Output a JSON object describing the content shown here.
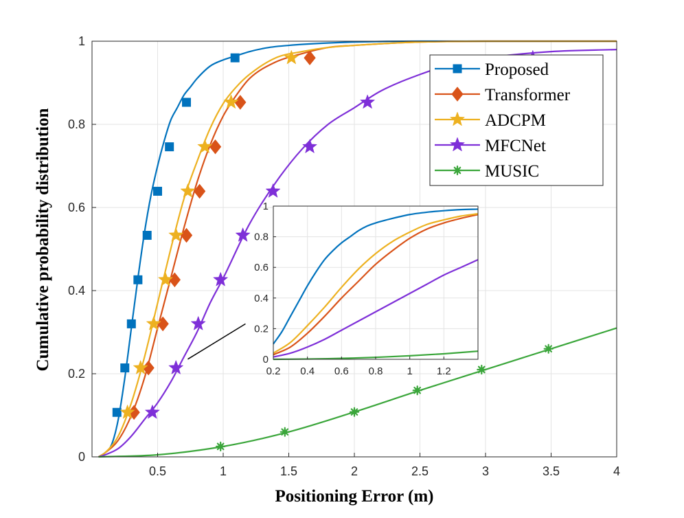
{
  "chart_data": [
    {
      "type": "line",
      "title": "",
      "xlabel": "Positioning  Error  (m)",
      "ylabel": "Cumulative  probability  distribution",
      "xlim": [
        0,
        4
      ],
      "ylim": [
        0,
        1
      ],
      "x_ticks": [
        0.5,
        1,
        1.5,
        2,
        2.5,
        3,
        3.5,
        4
      ],
      "x_tick_labels": [
        "0.5",
        "1",
        "1.5",
        "2",
        "2.5",
        "3",
        "3.5",
        "4"
      ],
      "y_ticks": [
        0,
        0.2,
        0.4,
        0.6,
        0.8,
        1
      ],
      "y_tick_labels": [
        "0",
        "0.2",
        "0.4",
        "0.6",
        "0.8",
        "1"
      ],
      "grid": true,
      "legend_position": "top-right",
      "series": [
        {
          "name": "Proposed",
          "color": "#0072BD",
          "marker": "square",
          "x": [
            0.05,
            0.1,
            0.15,
            0.2,
            0.25,
            0.3,
            0.35,
            0.4,
            0.45,
            0.5,
            0.55,
            0.6,
            0.65,
            0.7,
            0.75,
            0.8,
            0.9,
            1.0,
            1.1,
            1.2,
            1.35,
            1.5,
            1.75,
            2.0,
            2.5,
            3.0,
            3.5,
            4.0
          ],
          "y": [
            0.0,
            0.01,
            0.03,
            0.09,
            0.19,
            0.31,
            0.43,
            0.54,
            0.63,
            0.7,
            0.76,
            0.81,
            0.84,
            0.87,
            0.89,
            0.91,
            0.94,
            0.955,
            0.965,
            0.975,
            0.985,
            0.99,
            0.995,
            0.998,
            1.0,
            1.0,
            1.0,
            1.0
          ],
          "marker_x": [
            0.19,
            0.25,
            0.3,
            0.35,
            0.42,
            0.5,
            0.59,
            0.72,
            1.09
          ],
          "marker_y": [
            0.107,
            0.214,
            0.32,
            0.426,
            0.533,
            0.639,
            0.746,
            0.853,
            0.96
          ]
        },
        {
          "name": "Transformer",
          "color": "#D95319",
          "marker": "diamond",
          "x": [
            0.05,
            0.1,
            0.2,
            0.3,
            0.4,
            0.5,
            0.6,
            0.7,
            0.8,
            0.9,
            1.0,
            1.1,
            1.2,
            1.4,
            1.6,
            1.8,
            2.0,
            2.5,
            3.0,
            3.5,
            4.0
          ],
          "y": [
            0.0,
            0.01,
            0.04,
            0.1,
            0.19,
            0.31,
            0.43,
            0.55,
            0.66,
            0.75,
            0.82,
            0.87,
            0.91,
            0.95,
            0.97,
            0.985,
            0.99,
            0.998,
            1.0,
            1.0,
            1.0
          ],
          "marker_x": [
            0.32,
            0.43,
            0.54,
            0.63,
            0.72,
            0.82,
            0.94,
            1.13,
            1.66
          ],
          "marker_y": [
            0.107,
            0.214,
            0.32,
            0.426,
            0.533,
            0.639,
            0.746,
            0.853,
            0.96
          ]
        },
        {
          "name": "ADCPM",
          "color": "#EDB120",
          "marker": "star",
          "x": [
            0.05,
            0.1,
            0.2,
            0.3,
            0.4,
            0.5,
            0.6,
            0.7,
            0.8,
            0.9,
            1.0,
            1.1,
            1.2,
            1.4,
            1.6,
            1.8,
            2.0,
            2.5,
            3.0,
            3.5,
            4.0
          ],
          "y": [
            0.0,
            0.01,
            0.05,
            0.13,
            0.24,
            0.37,
            0.5,
            0.62,
            0.71,
            0.79,
            0.85,
            0.89,
            0.92,
            0.96,
            0.975,
            0.985,
            0.99,
            0.998,
            1.0,
            1.0,
            1.0
          ],
          "marker_x": [
            0.27,
            0.37,
            0.47,
            0.56,
            0.64,
            0.73,
            0.86,
            1.06,
            1.52
          ],
          "marker_y": [
            0.107,
            0.214,
            0.32,
            0.426,
            0.533,
            0.639,
            0.746,
            0.853,
            0.96
          ]
        },
        {
          "name": "MFCNet",
          "color": "#7E2FD8",
          "marker": "star",
          "x": [
            0.05,
            0.1,
            0.2,
            0.3,
            0.4,
            0.5,
            0.6,
            0.7,
            0.8,
            0.9,
            1.0,
            1.2,
            1.4,
            1.6,
            1.8,
            2.0,
            2.2,
            2.5,
            2.8,
            3.0,
            3.5,
            4.0
          ],
          "y": [
            0.0,
            0.005,
            0.02,
            0.05,
            0.09,
            0.13,
            0.18,
            0.24,
            0.3,
            0.37,
            0.43,
            0.56,
            0.66,
            0.74,
            0.8,
            0.84,
            0.88,
            0.92,
            0.95,
            0.96,
            0.975,
            0.98
          ],
          "marker_x": [
            0.46,
            0.64,
            0.81,
            0.98,
            1.15,
            1.38,
            1.66,
            2.1,
            3.36
          ],
          "marker_y": [
            0.107,
            0.214,
            0.32,
            0.426,
            0.533,
            0.639,
            0.746,
            0.853,
            0.96
          ]
        },
        {
          "name": "MUSIC",
          "color": "#3BA63B",
          "marker": "asterisk",
          "x": [
            0.05,
            0.5,
            1.0,
            1.5,
            2.0,
            2.5,
            3.0,
            3.5,
            4.0
          ],
          "y": [
            0.0,
            0.005,
            0.025,
            0.06,
            0.108,
            0.16,
            0.21,
            0.26,
            0.31
          ],
          "marker_x": [
            0.98,
            1.47,
            2.0,
            2.48,
            2.97,
            3.48
          ],
          "marker_y": [
            0.025,
            0.06,
            0.108,
            0.16,
            0.21,
            0.26
          ]
        }
      ]
    },
    {
      "type": "line",
      "title": "",
      "xlabel": "",
      "ylabel": "",
      "xlim": [
        0.2,
        1.4
      ],
      "ylim": [
        0,
        1
      ],
      "x_ticks": [
        0.2,
        0.4,
        0.6,
        0.8,
        1,
        1.2
      ],
      "x_tick_labels": [
        "0.2",
        "0.4",
        "0.6",
        "0.8",
        "1",
        "1.2"
      ],
      "y_ticks": [
        0,
        0.2,
        0.4,
        0.6,
        0.8,
        1
      ],
      "y_tick_labels": [
        "0",
        "0.2",
        "0.4",
        "0.6",
        "0.8",
        "1"
      ],
      "grid": true,
      "series": [
        {
          "name": "Proposed",
          "color": "#0072BD",
          "x": [
            0.2,
            0.25,
            0.3,
            0.35,
            0.4,
            0.45,
            0.5,
            0.55,
            0.6,
            0.65,
            0.7,
            0.75,
            0.8,
            0.9,
            1.0,
            1.1,
            1.2,
            1.3,
            1.4
          ],
          "y": [
            0.1,
            0.18,
            0.28,
            0.38,
            0.48,
            0.57,
            0.65,
            0.71,
            0.76,
            0.8,
            0.84,
            0.87,
            0.89,
            0.92,
            0.945,
            0.96,
            0.97,
            0.977,
            0.98
          ]
        },
        {
          "name": "Transformer",
          "color": "#D95319",
          "x": [
            0.2,
            0.3,
            0.4,
            0.5,
            0.6,
            0.7,
            0.8,
            0.9,
            1.0,
            1.1,
            1.2,
            1.3,
            1.4
          ],
          "y": [
            0.03,
            0.08,
            0.17,
            0.28,
            0.4,
            0.51,
            0.62,
            0.71,
            0.79,
            0.85,
            0.89,
            0.92,
            0.945
          ]
        },
        {
          "name": "ADCPM",
          "color": "#EDB120",
          "x": [
            0.2,
            0.3,
            0.4,
            0.5,
            0.6,
            0.7,
            0.8,
            0.9,
            1.0,
            1.1,
            1.2,
            1.3,
            1.4
          ],
          "y": [
            0.04,
            0.11,
            0.22,
            0.34,
            0.47,
            0.59,
            0.69,
            0.77,
            0.83,
            0.88,
            0.91,
            0.935,
            0.95
          ]
        },
        {
          "name": "MFCNet",
          "color": "#7E2FD8",
          "x": [
            0.2,
            0.3,
            0.4,
            0.5,
            0.6,
            0.7,
            0.8,
            0.9,
            1.0,
            1.1,
            1.2,
            1.3,
            1.4
          ],
          "y": [
            0.015,
            0.04,
            0.08,
            0.13,
            0.19,
            0.25,
            0.31,
            0.37,
            0.43,
            0.49,
            0.55,
            0.6,
            0.65
          ]
        },
        {
          "name": "MUSIC",
          "color": "#3BA63B",
          "x": [
            0.2,
            0.4,
            0.6,
            0.8,
            1.0,
            1.2,
            1.4
          ],
          "y": [
            0.0,
            0.002,
            0.006,
            0.013,
            0.023,
            0.036,
            0.053
          ]
        }
      ]
    }
  ]
}
